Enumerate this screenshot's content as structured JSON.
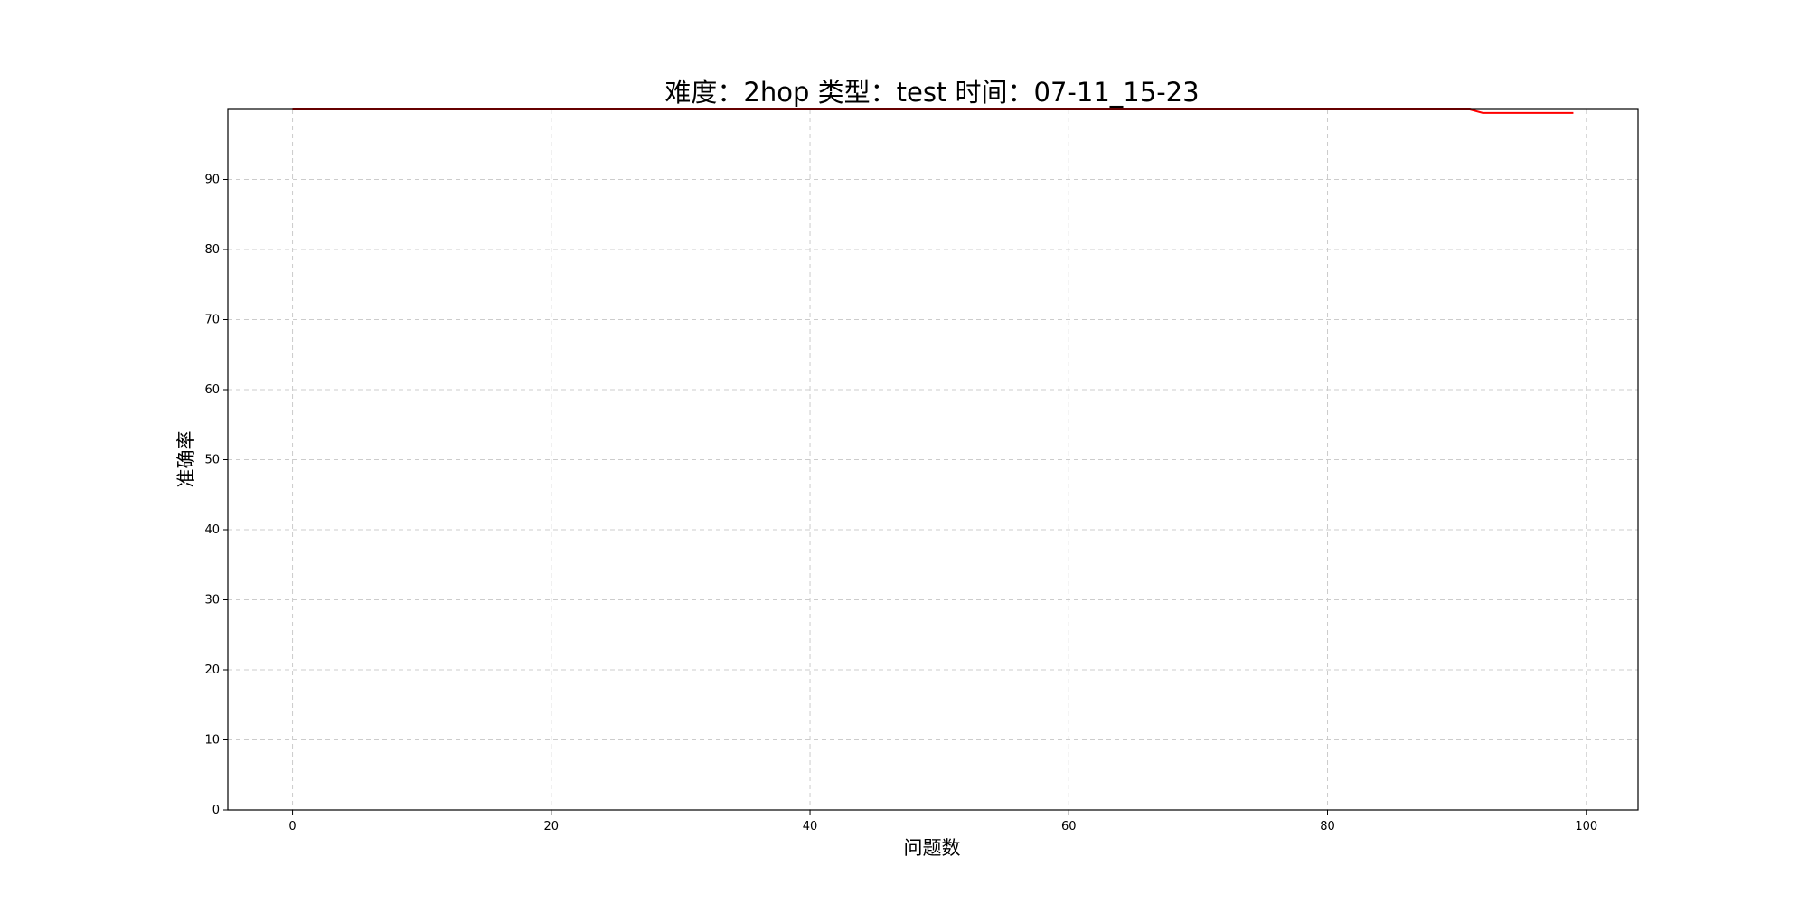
{
  "chart_data": {
    "type": "line",
    "title": "难度：2hop 类型：test 时间：07-11_15-23",
    "xlabel": "问题数",
    "ylabel": "准确率",
    "xlim": [
      -5,
      104
    ],
    "ylim": [
      0,
      100
    ],
    "x_ticks": [
      0,
      20,
      40,
      60,
      80,
      100
    ],
    "y_ticks": [
      0,
      10,
      20,
      30,
      40,
      50,
      60,
      70,
      80,
      90
    ],
    "grid": true,
    "series": [
      {
        "color": "#ff0000",
        "x": [
          0,
          10,
          20,
          30,
          40,
          50,
          60,
          70,
          80,
          90,
          91,
          92,
          93,
          94,
          95,
          96,
          97,
          98,
          99
        ],
        "y": [
          100,
          100,
          100,
          100,
          100,
          100,
          100,
          100,
          100,
          100,
          100,
          99.5,
          99.5,
          99.5,
          99.5,
          99.5,
          99.5,
          99.5,
          99.5
        ]
      }
    ]
  }
}
